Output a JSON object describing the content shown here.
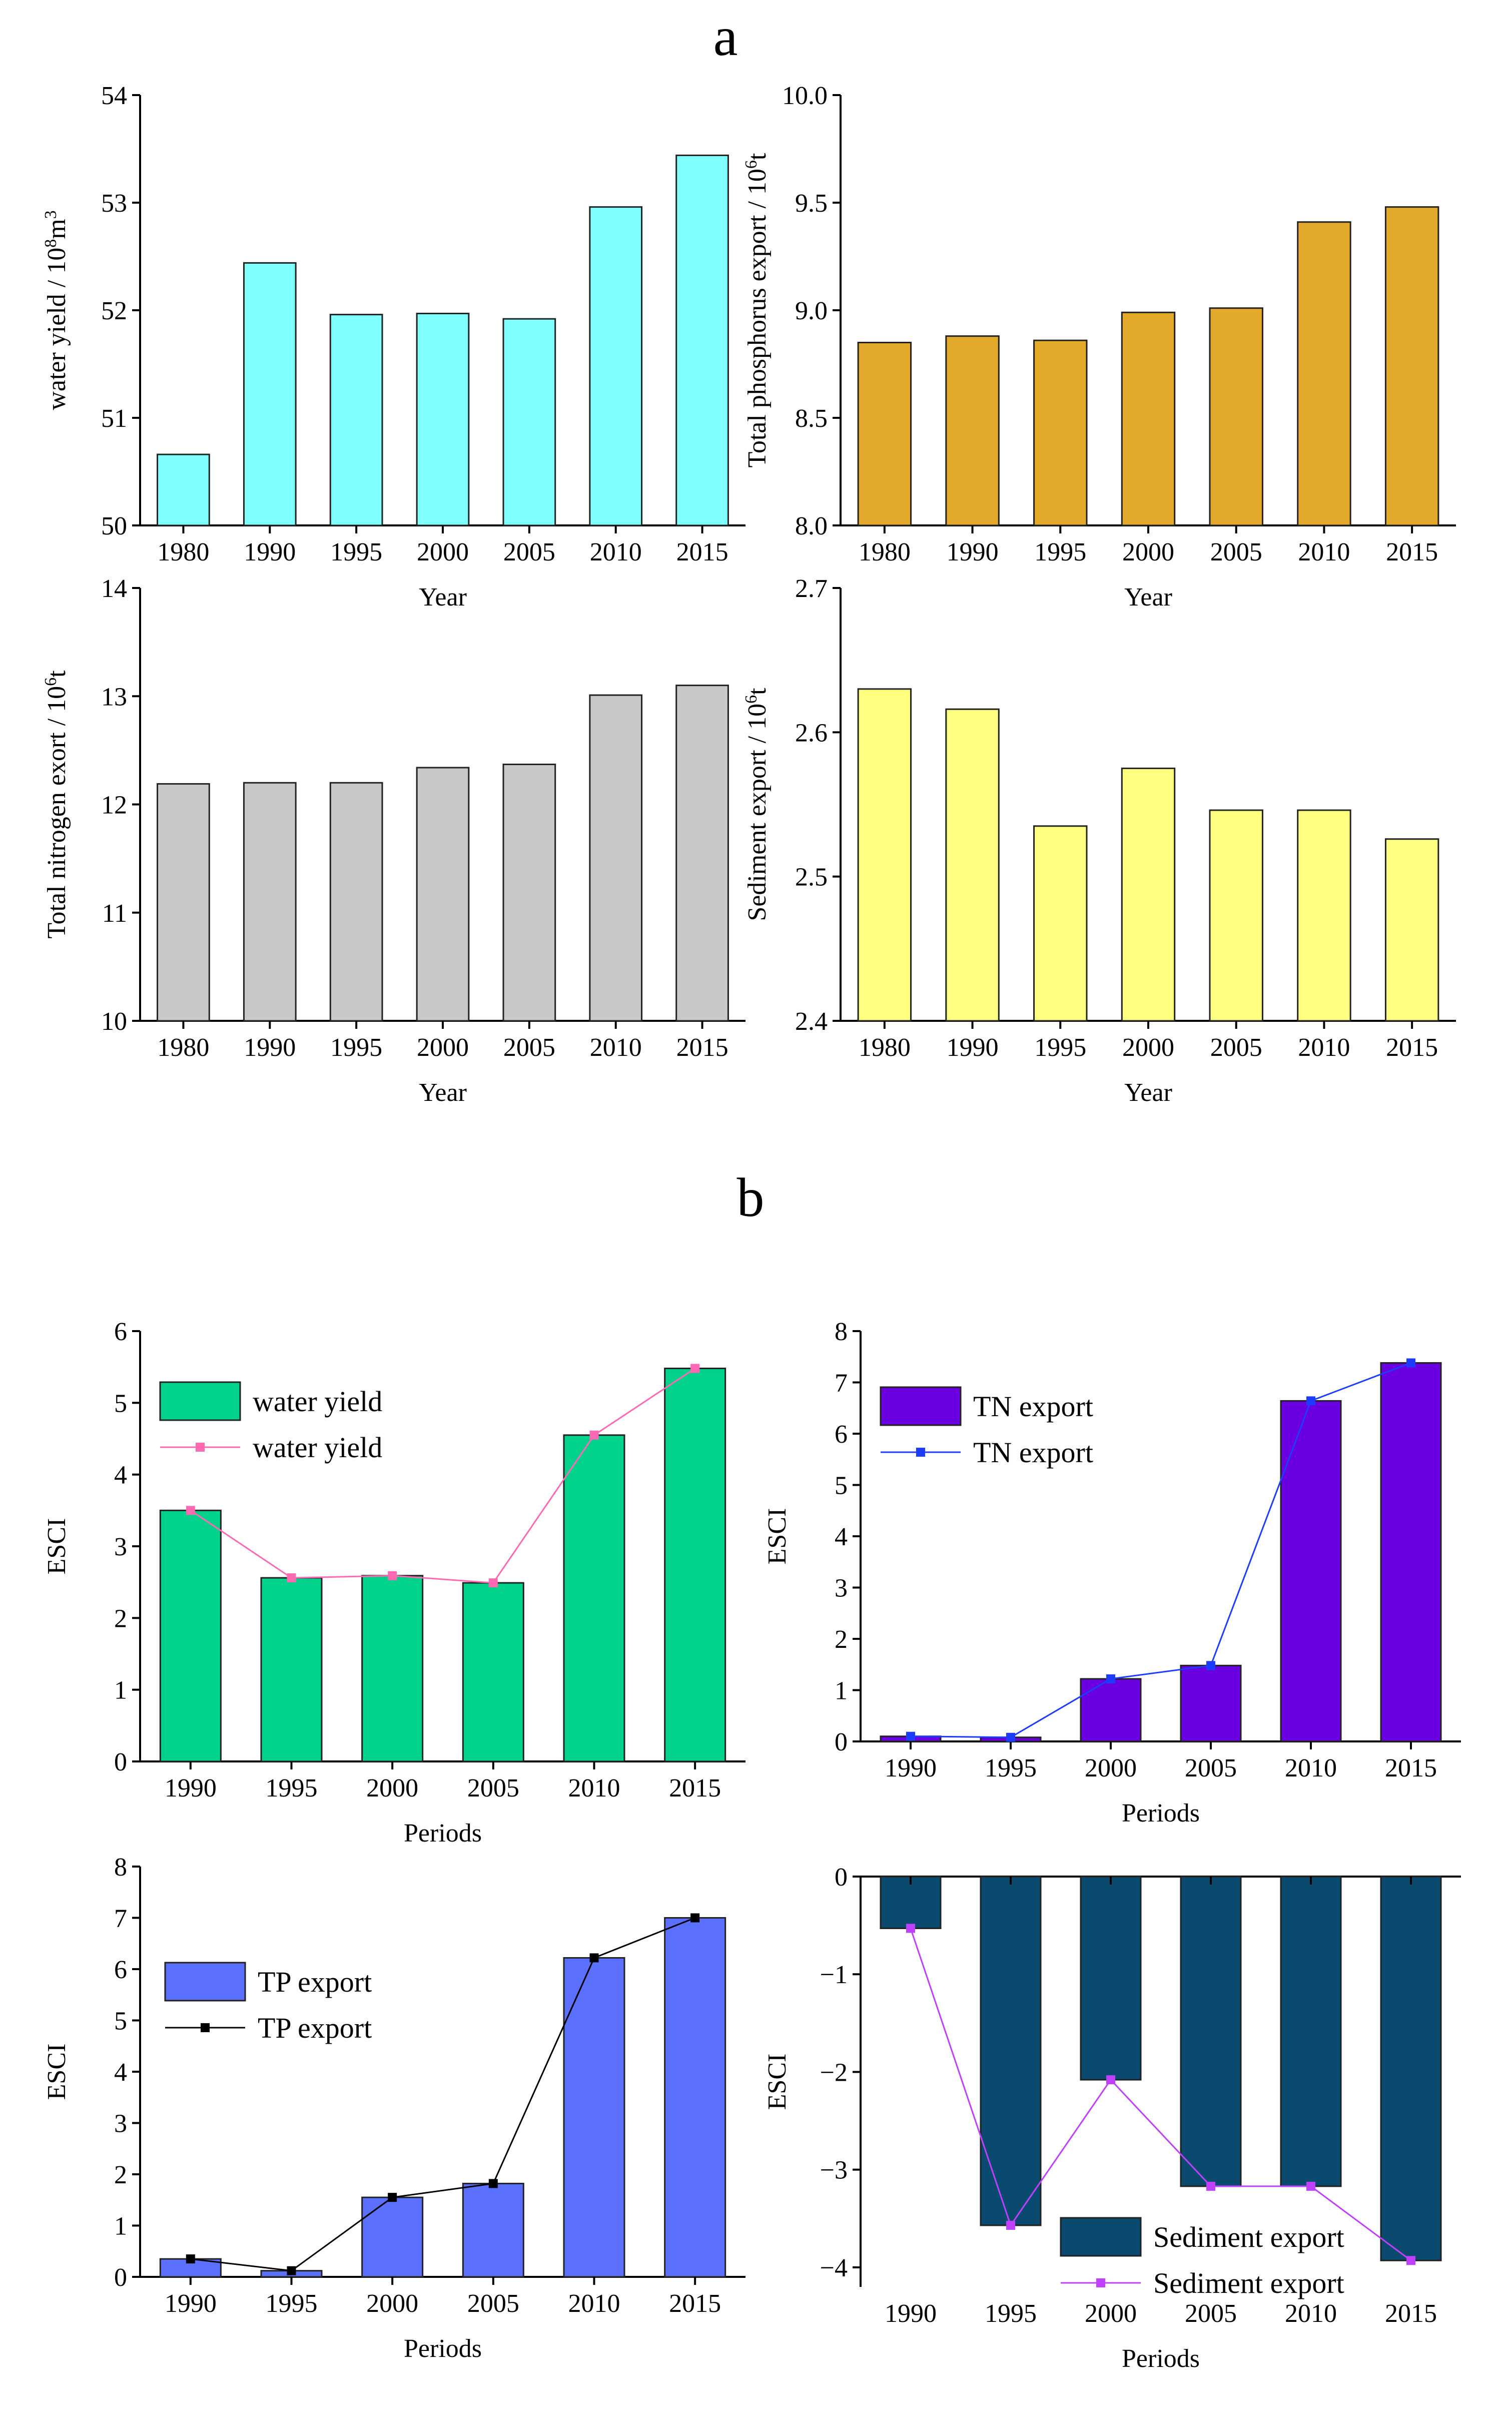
{
  "panel_labels": {
    "a": "a",
    "b": "b"
  },
  "chart_data": [
    {
      "id": "a1",
      "type": "bar",
      "title": "",
      "categories": [
        "1980",
        "1990",
        "1995",
        "2000",
        "2005",
        "2010",
        "2015"
      ],
      "values": [
        50.66,
        52.44,
        51.96,
        51.97,
        51.92,
        52.96,
        53.44
      ],
      "ylim": [
        50,
        54
      ],
      "yticks": [
        "50",
        "51",
        "52",
        "53",
        "54"
      ],
      "ytick_values": [
        50,
        51,
        52,
        53,
        54
      ],
      "xlabel": "Year",
      "ylabel_parts": [
        {
          "t": "water yield / 10"
        },
        {
          "t": "8",
          "sup": true
        },
        {
          "t": "m"
        },
        {
          "t": "3",
          "sup": true
        }
      ],
      "color": "#80FFFF"
    },
    {
      "id": "a2",
      "type": "bar",
      "title": "",
      "categories": [
        "1980",
        "1990",
        "1995",
        "2000",
        "2005",
        "2010",
        "2015"
      ],
      "values": [
        8.85,
        8.88,
        8.86,
        8.99,
        9.01,
        9.41,
        9.48
      ],
      "ylim": [
        8.0,
        10.0
      ],
      "yticks": [
        "8.0",
        "8.5",
        "9.0",
        "9.5",
        "10.0"
      ],
      "ytick_values": [
        8.0,
        8.5,
        9.0,
        9.5,
        10.0
      ],
      "xlabel": "Year",
      "ylabel_parts": [
        {
          "t": "Total phosphorus export / 10"
        },
        {
          "t": "6",
          "sup": true
        },
        {
          "t": "t"
        }
      ],
      "color": "#E3A92B"
    },
    {
      "id": "a3",
      "type": "bar",
      "title": "",
      "categories": [
        "1980",
        "1990",
        "1995",
        "2000",
        "2005",
        "2010",
        "2015"
      ],
      "values": [
        12.19,
        12.2,
        12.2,
        12.34,
        12.37,
        13.01,
        13.1
      ],
      "ylim": [
        10,
        14
      ],
      "yticks": [
        "10",
        "11",
        "12",
        "13",
        "14"
      ],
      "ytick_values": [
        10,
        11,
        12,
        13,
        14
      ],
      "xlabel": "Year",
      "ylabel_parts": [
        {
          "t": "Total nitrogen exort / 10"
        },
        {
          "t": "6",
          "sup": true
        },
        {
          "t": "t"
        }
      ],
      "color": "#C8C8C8"
    },
    {
      "id": "a4",
      "type": "bar",
      "title": "",
      "categories": [
        "1980",
        "1990",
        "1995",
        "2000",
        "2005",
        "2010",
        "2015"
      ],
      "values": [
        2.63,
        2.616,
        2.535,
        2.575,
        2.546,
        2.546,
        2.526
      ],
      "ylim": [
        2.4,
        2.7
      ],
      "yticks": [
        "2.4",
        "2.5",
        "2.6",
        "2.7"
      ],
      "ytick_values": [
        2.4,
        2.5,
        2.6,
        2.7
      ],
      "xlabel": "Year",
      "ylabel_parts": [
        {
          "t": "Sediment export / 10"
        },
        {
          "t": "6",
          "sup": true
        },
        {
          "t": "t"
        }
      ],
      "color": "#FFFF80"
    },
    {
      "id": "b1",
      "type": "bar+line",
      "categories": [
        "1990",
        "1995",
        "2000",
        "2005",
        "2010",
        "2015"
      ],
      "values": [
        3.5,
        2.56,
        2.59,
        2.49,
        4.55,
        5.48
      ],
      "ylim": [
        0,
        6
      ],
      "yticks": [
        "0",
        "1",
        "2",
        "3",
        "4",
        "5",
        "6"
      ],
      "ytick_values": [
        0,
        1,
        2,
        3,
        4,
        5,
        6
      ],
      "xlabel": "Periods",
      "ylabel": "ESCI",
      "color": "#00D28C",
      "line_color": "#FF69B4",
      "legend": [
        "water yield",
        "water yield"
      ]
    },
    {
      "id": "b2",
      "type": "bar+line",
      "categories": [
        "1990",
        "1995",
        "2000",
        "2005",
        "2010",
        "2015"
      ],
      "values": [
        0.1,
        0.08,
        1.22,
        1.48,
        6.64,
        7.38
      ],
      "ylim": [
        0,
        8
      ],
      "yticks": [
        "0",
        "1",
        "2",
        "3",
        "4",
        "5",
        "6",
        "7",
        "8"
      ],
      "ytick_values": [
        0,
        1,
        2,
        3,
        4,
        5,
        6,
        7,
        8
      ],
      "xlabel": "Periods",
      "ylabel": "ESCI",
      "color": "#6A00E0",
      "line_color": "#1E3CFF",
      "legend": [
        "TN export",
        "TN export"
      ]
    },
    {
      "id": "b3",
      "type": "bar+line",
      "categories": [
        "1990",
        "1995",
        "2000",
        "2005",
        "2010",
        "2015"
      ],
      "values": [
        0.35,
        0.12,
        1.55,
        1.82,
        6.22,
        7.0
      ],
      "ylim": [
        0,
        8
      ],
      "yticks": [
        "0",
        "1",
        "2",
        "3",
        "4",
        "5",
        "6",
        "7",
        "8"
      ],
      "ytick_values": [
        0,
        1,
        2,
        3,
        4,
        5,
        6,
        7,
        8
      ],
      "xlabel": "Periods",
      "ylabel": "ESCI",
      "color": "#5B70FF",
      "line_color": "#000000",
      "legend": [
        "TP export",
        "TP export"
      ]
    },
    {
      "id": "b4",
      "type": "bar+line",
      "categories": [
        "1990",
        "1995",
        "2000",
        "2005",
        "2010",
        "2015"
      ],
      "values": [
        -0.53,
        -3.57,
        -2.08,
        -3.17,
        -3.17,
        -3.93
      ],
      "ylim": [
        -4.2,
        0
      ],
      "yticks": [
        "0",
        "−1",
        "−2",
        "−3",
        "−4"
      ],
      "ytick_values": [
        0,
        -1,
        -2,
        -3,
        -4
      ],
      "xlabel": "Periods",
      "ylabel": "ESCI",
      "color": "#0A4A6E",
      "line_color": "#C040FF",
      "legend": [
        "Sediment export",
        "Sediment export"
      ]
    }
  ]
}
